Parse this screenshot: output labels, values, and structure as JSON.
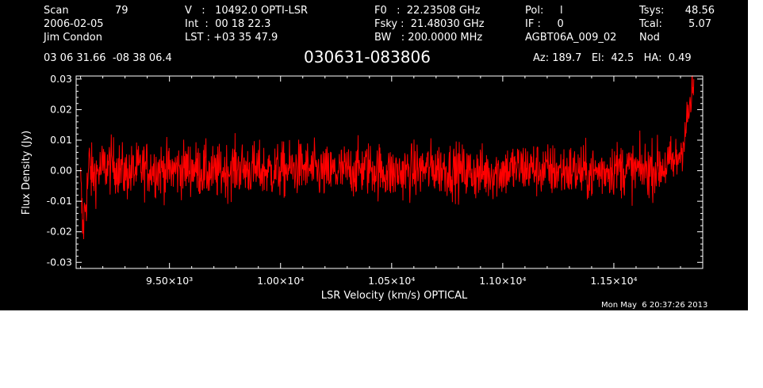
{
  "header": {
    "col1": {
      "scan_label": "Scan",
      "scan_value": "79",
      "date": "2006-02-05",
      "observer": "Jim Condon",
      "coords": "03 06 31.66  -08 38 06.4"
    },
    "col2": {
      "v_line": "V   :   10492.0 OPTI-LSR",
      "int_line": "Int  :  00 18 22.3",
      "lst_line": "LST : +03 35 47.9"
    },
    "col3": {
      "f0_line": "F0   :  22.23508 GHz",
      "fsky_line": "Fsky :  21.48030 GHz",
      "bw_line": "BW   : 200.0000 MHz"
    },
    "col4": {
      "pol_line": "Pol:     l",
      "if_line": "IF :     0",
      "proj_line": "AGBT06A_009_02"
    },
    "col5": {
      "tsys_label": "Tsys:",
      "tsys_value": "48.56",
      "tcal_label": "Tcal:",
      "tcal_value": "5.07",
      "mode": "Nod"
    },
    "source": "030631-083806",
    "az_el_ha": "Az: 189.7   El:  42.5   HA:  0.49"
  },
  "footer": {
    "timestamp": "Mon May  6 20:37:26 2013"
  },
  "colors": {
    "background": "#000000",
    "series": "#ff0000",
    "axes": "#ffffff"
  },
  "chart_data": {
    "type": "line",
    "title": "030631-083806",
    "xlabel": "LSR Velocity (km/s) OPTICAL",
    "ylabel": "Flux Density (Jy)",
    "xlim": [
      9080,
      11900
    ],
    "ylim": [
      -0.032,
      0.031
    ],
    "x_ticks": [
      9500,
      10000,
      10500,
      11000,
      11500
    ],
    "x_tick_labels": [
      "9.50×10³",
      "1.00×10⁴",
      "1.05×10⁴",
      "1.10×10⁴",
      "1.15×10⁴"
    ],
    "y_ticks": [
      -0.03,
      -0.02,
      -0.01,
      0.0,
      0.01,
      0.02,
      0.03
    ],
    "y_tick_labels": [
      "-0.03",
      "-0.02",
      "-0.01",
      "0.00",
      "0.01",
      "0.02",
      "0.03"
    ],
    "grid": false,
    "series": [
      {
        "x": [
          9100,
          9110,
          9120,
          9130,
          9140,
          9150,
          9200,
          9250,
          9300,
          9400,
          9500,
          9600,
          9700,
          9800,
          9900,
          10000,
          10100,
          10200,
          10300,
          10400,
          10500,
          10600,
          10700,
          10800,
          10900,
          11000,
          11100,
          11200,
          11300,
          11400,
          11500,
          11600,
          11700,
          11750,
          11780,
          11800,
          11820,
          11840,
          11860
        ],
        "y": [
          -0.004,
          -0.02,
          -0.012,
          -0.006,
          0.003,
          -0.002,
          0.001,
          0.002,
          -0.001,
          0.001,
          0.0,
          0.001,
          -0.001,
          0.001,
          0.0,
          0.0,
          0.001,
          -0.001,
          0.0,
          0.001,
          -0.001,
          0.0,
          0.001,
          0.0,
          -0.001,
          0.0,
          0.001,
          0.0,
          0.0,
          -0.001,
          0.001,
          0.0,
          0.001,
          0.002,
          0.003,
          0.006,
          0.012,
          0.02,
          0.028
        ]
      }
    ]
  }
}
